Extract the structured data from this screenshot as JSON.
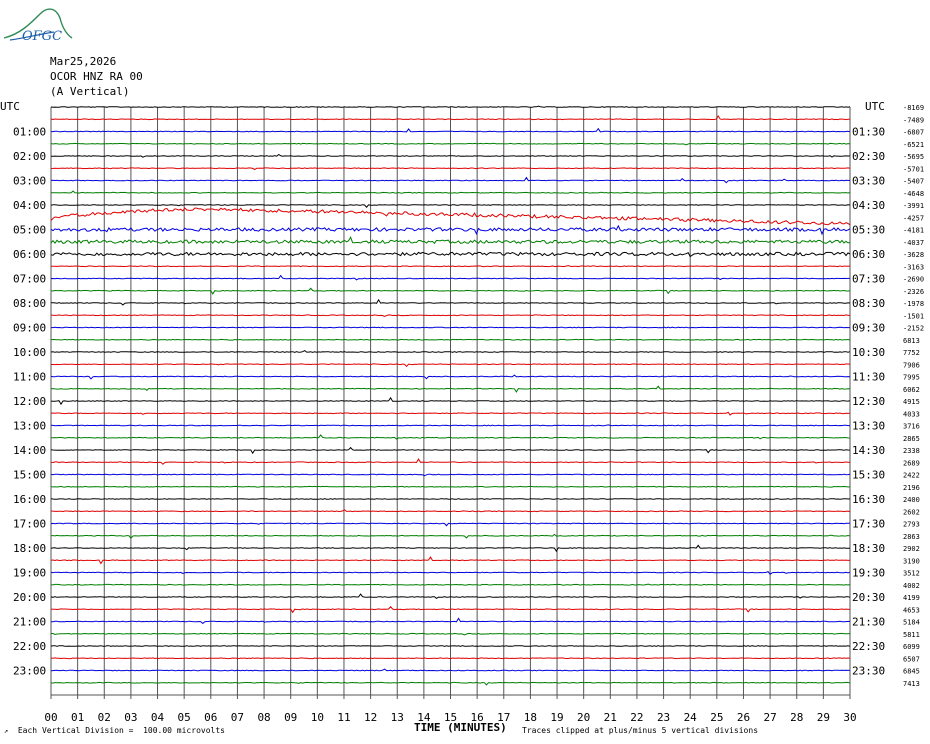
{
  "logo_text": "OFGC",
  "header": {
    "date": "Mar25,2026",
    "station": "OCOR HNZ RA 00",
    "component": "(A Vertical)"
  },
  "left_axis_title": "UTC",
  "right_axis_title": "UTC",
  "chart_data": {
    "type": "line",
    "description_axis": "helicorder",
    "x_title": "TIME (MINUTES)",
    "x_ticks": [
      "00",
      "01",
      "02",
      "03",
      "04",
      "05",
      "06",
      "07",
      "08",
      "09",
      "10",
      "11",
      "12",
      "13",
      "14",
      "15",
      "16",
      "17",
      "18",
      "19",
      "20",
      "21",
      "22",
      "23",
      "24",
      "25",
      "26",
      "27",
      "28",
      "29",
      "30"
    ],
    "xlim": [
      0,
      30
    ],
    "left_hour_labels": [
      "01:00",
      "02:00",
      "03:00",
      "04:00",
      "05:00",
      "06:00",
      "07:00",
      "08:00",
      "09:00",
      "10:00",
      "11:00",
      "12:00",
      "13:00",
      "14:00",
      "15:00",
      "16:00",
      "17:00",
      "18:00",
      "19:00",
      "20:00",
      "21:00",
      "22:00",
      "23:00"
    ],
    "right_half_labels": [
      "01:30",
      "02:30",
      "03:30",
      "04:30",
      "05:30",
      "06:30",
      "07:30",
      "08:30",
      "09:30",
      "10:30",
      "11:30",
      "12:30",
      "13:30",
      "14:30",
      "15:30",
      "16:30",
      "17:30",
      "18:30",
      "19:30",
      "20:30",
      "21:30",
      "22:30",
      "23:30"
    ],
    "trace_offsets": [
      "-8169",
      "-7489",
      "-6807",
      "-6521",
      "-5695",
      "-5701",
      "-5407",
      "-4648",
      "-3991",
      "-4257",
      "-4181",
      "-4037",
      "-3628",
      "-3163",
      "-2690",
      "-2326",
      "-1978",
      "-1501",
      "-2152",
      "6813",
      "7752",
      "7906",
      "7995",
      "6062",
      "4915",
      "4033",
      "3716",
      "2865",
      "2338",
      "2689",
      "2422",
      "2196",
      "2400",
      "2602",
      "2793",
      "2863",
      "2902",
      "3190",
      "3512",
      "4002",
      "4199",
      "4653",
      "5184",
      "5811",
      "6099",
      "6507",
      "6845",
      "7413"
    ],
    "trace_colors": [
      "#000000",
      "#e00000",
      "#0000e0",
      "#008000"
    ],
    "event": {
      "start_trace": 9,
      "description": ""
    }
  },
  "footer": {
    "left": "Each Vertical Division =  100.00 microvolts",
    "right": "Traces clipped at plus/minus 5 vertical divisions"
  }
}
